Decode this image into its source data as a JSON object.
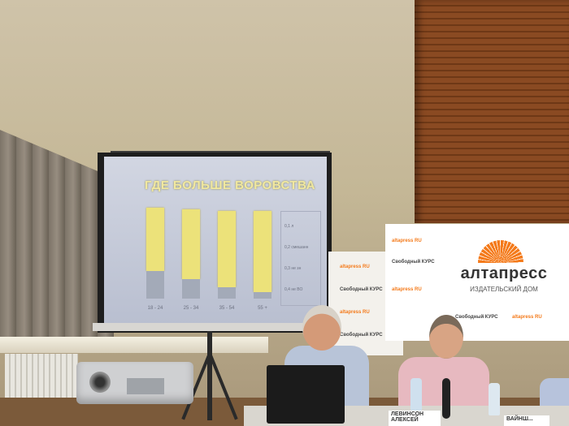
{
  "slide": {
    "title": "ГДЕ БОЛЬШЕ ВОРОВСТВА",
    "x_labels": [
      "18 - 24",
      "25 - 34",
      "35 - 54",
      "55 +"
    ],
    "legend": [
      "0,1 л",
      "0,2 смешанн",
      "0,3 не зн",
      "0,4 не ВО"
    ]
  },
  "sign": {
    "brand": "алтапресс",
    "subtitle": "ИЗДАТЕЛЬСКИЙ ДОМ",
    "small_logo_1": "altapress RU",
    "small_logo_2": "Свободный КУРС"
  },
  "nameplates": {
    "left": "ЛЕВИНСОН АЛЕКСЕЙ",
    "right": "ВАЙНШ..."
  },
  "colors": {
    "slide_bar": "#ece27a",
    "slide_bg": "#c6cbd8",
    "brand_orange": "#f47a1a"
  }
}
